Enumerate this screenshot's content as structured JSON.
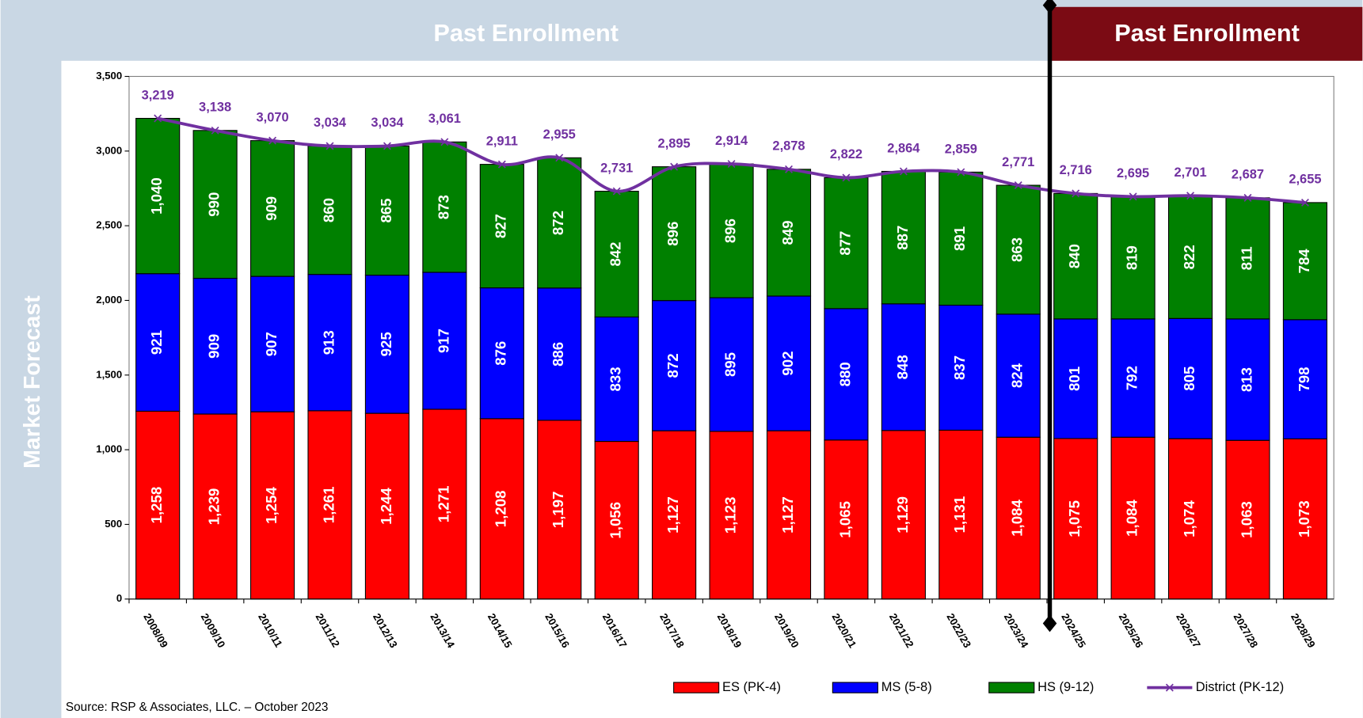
{
  "chart_data": {
    "type": "stacked-bar-line",
    "banners": [
      "Past Enrollment",
      "Past Enrollment"
    ],
    "ylabel": "Market Forecast",
    "source": "Source: RSP & Associates, LLC. – October 2023",
    "categories": [
      "2008/09",
      "2009/10",
      "2010/11",
      "2011/12",
      "2012/13",
      "2013/14",
      "2014/15",
      "2015/16",
      "2016/17",
      "2017/18",
      "2018/19",
      "2019/20",
      "2020/21",
      "2021/22",
      "2022/23",
      "2023/24",
      "2024/25",
      "2025/26",
      "2026/27",
      "2027/28",
      "2028/29"
    ],
    "ylim": [
      0,
      3500
    ],
    "yticks": [
      0,
      500,
      {
        "value": 1000,
        "label": "1,000"
      },
      {
        "value": 1500,
        "label": "1,500"
      },
      {
        "value": 2000,
        "label": "2,000"
      },
      {
        "value": 2500,
        "label": "2,500"
      },
      {
        "value": 3000,
        "label": "3,000"
      },
      {
        "value": 3500,
        "label": "3,500"
      }
    ],
    "grid": false,
    "series": [
      {
        "name": "ES (PK-4)",
        "color": "#ff0000",
        "values": [
          1258,
          1239,
          1254,
          1261,
          1244,
          1271,
          1208,
          1197,
          1056,
          1127,
          1123,
          1127,
          1065,
          1129,
          1131,
          1084,
          1075,
          1084,
          1074,
          1063,
          1073
        ],
        "value_labels": [
          "1,258",
          "1,239",
          "1,254",
          "1,261",
          "1,244",
          "1,271",
          "1,208",
          "1,197",
          "1,056",
          "1,127",
          "1,123",
          "1,127",
          "1,065",
          "1,129",
          "1,131",
          "1,084",
          "1,075",
          "1,084",
          "1,074",
          "1,063",
          "1,073"
        ]
      },
      {
        "name": "MS (5-8)",
        "color": "#0000ff",
        "values": [
          921,
          909,
          907,
          913,
          925,
          917,
          876,
          886,
          833,
          872,
          895,
          902,
          880,
          848,
          837,
          824,
          801,
          792,
          805,
          813,
          798
        ]
      },
      {
        "name": "HS (9-12)",
        "color": "#008000",
        "values": [
          1040,
          990,
          909,
          860,
          865,
          873,
          827,
          872,
          842,
          896,
          896,
          849,
          877,
          887,
          891,
          863,
          840,
          819,
          822,
          811,
          784
        ],
        "value_labels": [
          "1,040",
          "990",
          "909",
          "860",
          "865",
          "873",
          "827",
          "872",
          "842",
          "896",
          "896",
          "849",
          "877",
          "887",
          "891",
          "863",
          "840",
          "819",
          "822",
          "811",
          "784"
        ]
      },
      {
        "name": "District (PK-12)",
        "color": "#7030a0",
        "type": "line",
        "values": [
          3219,
          3138,
          3070,
          3034,
          3034,
          3061,
          2911,
          2955,
          2731,
          2895,
          2914,
          2878,
          2822,
          2864,
          2859,
          2771,
          2716,
          2695,
          2701,
          2687,
          2655
        ],
        "value_labels": [
          "3,219",
          "3,138",
          "3,070",
          "3,034",
          "3,034",
          "3,061",
          "2,911",
          "2,955",
          "2,731",
          "2,895",
          "2,914",
          "2,878",
          "2,822",
          "2,864",
          "2,859",
          "2,771",
          "2,716",
          "2,695",
          "2,701",
          "2,687",
          "2,655"
        ]
      }
    ]
  }
}
